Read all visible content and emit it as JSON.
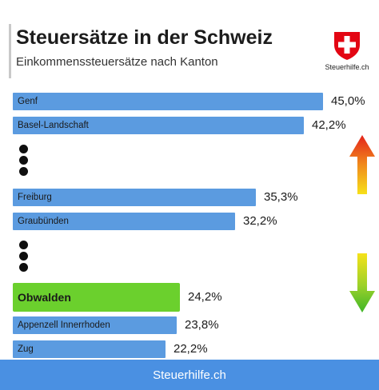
{
  "header": {
    "title": "Steuersätze in der Schweiz",
    "subtitle": "Einkommenssteuersätze nach Kanton"
  },
  "logo": {
    "text": "Steuerhilfe.ch",
    "icon": "swiss-cross-icon",
    "color": "#e30613"
  },
  "chart_data": {
    "type": "bar",
    "orientation": "horizontal",
    "title": "Steuersätze in der Schweiz",
    "subtitle": "Einkommenssteuersätze nach Kanton",
    "categories": [
      "Genf",
      "Basel-Landschaft",
      "Freiburg",
      "Graubünden",
      "Obwalden",
      "Appenzell Innerrhoden",
      "Zug"
    ],
    "values": [
      45.0,
      42.2,
      35.3,
      32.2,
      24.2,
      23.8,
      22.2
    ],
    "value_labels": [
      "45,0%",
      "42,2%",
      "35,3%",
      "32,2%",
      "24,2%",
      "23,8%",
      "22,2%"
    ],
    "highlighted": "Obwalden",
    "colors": {
      "bar": "#5b9be0",
      "highlight": "#6bd02d"
    },
    "gaps_after": [
      "Basel-Landschaft",
      "Graubünden"
    ],
    "indicators": {
      "up": "gradient-arrow-up-icon",
      "down": "gradient-arrow-down-icon"
    }
  },
  "footer": {
    "text": "Steuerhilfe.ch",
    "color": "#4a90e2"
  }
}
